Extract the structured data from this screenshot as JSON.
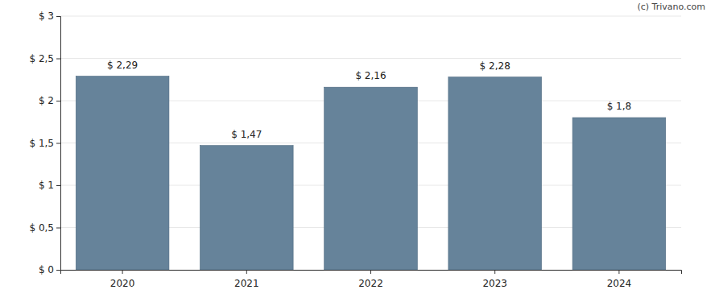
{
  "chart_data": {
    "type": "bar",
    "annotations": [
      "(c) Trivano.com"
    ],
    "categories": [
      "2020",
      "2021",
      "2022",
      "2023",
      "2024"
    ],
    "values": [
      2.29,
      1.47,
      2.16,
      2.28,
      1.8
    ],
    "value_labels": [
      "$ 2,29",
      "$ 1,47",
      "$ 2,16",
      "$ 2,28",
      "$ 1,8"
    ],
    "data_labels": true,
    "color": "#66839a",
    "ylim": [
      0,
      3
    ],
    "yticks": [
      {
        "value": 0,
        "label": "$ 0"
      },
      {
        "value": 0.5,
        "label": "$ 0,5"
      },
      {
        "value": 1,
        "label": "$ 1"
      },
      {
        "value": 1.5,
        "label": "$ 1,5"
      },
      {
        "value": 2,
        "label": "$ 2"
      },
      {
        "value": 2.5,
        "label": "$ 2,5"
      },
      {
        "value": 3,
        "label": "$ 3"
      }
    ],
    "grid": true
  }
}
